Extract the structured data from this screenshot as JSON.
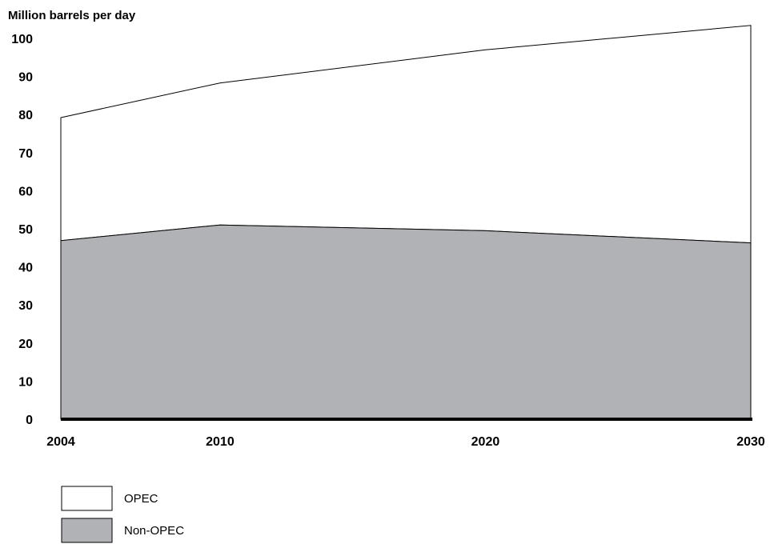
{
  "chart_data": {
    "type": "area",
    "stacked": true,
    "title": "",
    "ylabel": "Million barrels per day",
    "xlabel": "",
    "x": [
      2004,
      2010,
      2020,
      2030
    ],
    "x_tick_labels": [
      "2004",
      "2010",
      "2020",
      "2030"
    ],
    "ylim": [
      0,
      100
    ],
    "y_ticks": [
      0,
      10,
      20,
      30,
      40,
      50,
      60,
      70,
      80,
      90,
      100
    ],
    "grid": false,
    "legend_position": "bottom-left",
    "series": [
      {
        "name": "Non-OPEC",
        "values": [
          46.9,
          51.0,
          49.5,
          46.3
        ],
        "color": "#b1b2b5"
      },
      {
        "name": "OPEC",
        "values": [
          32.3,
          37.3,
          47.5,
          57.1
        ],
        "color": "#ffffff"
      }
    ],
    "totals": [
      79.2,
      88.3,
      97.0,
      103.4
    ],
    "legend_order": [
      "OPEC",
      "Non-OPEC"
    ]
  }
}
